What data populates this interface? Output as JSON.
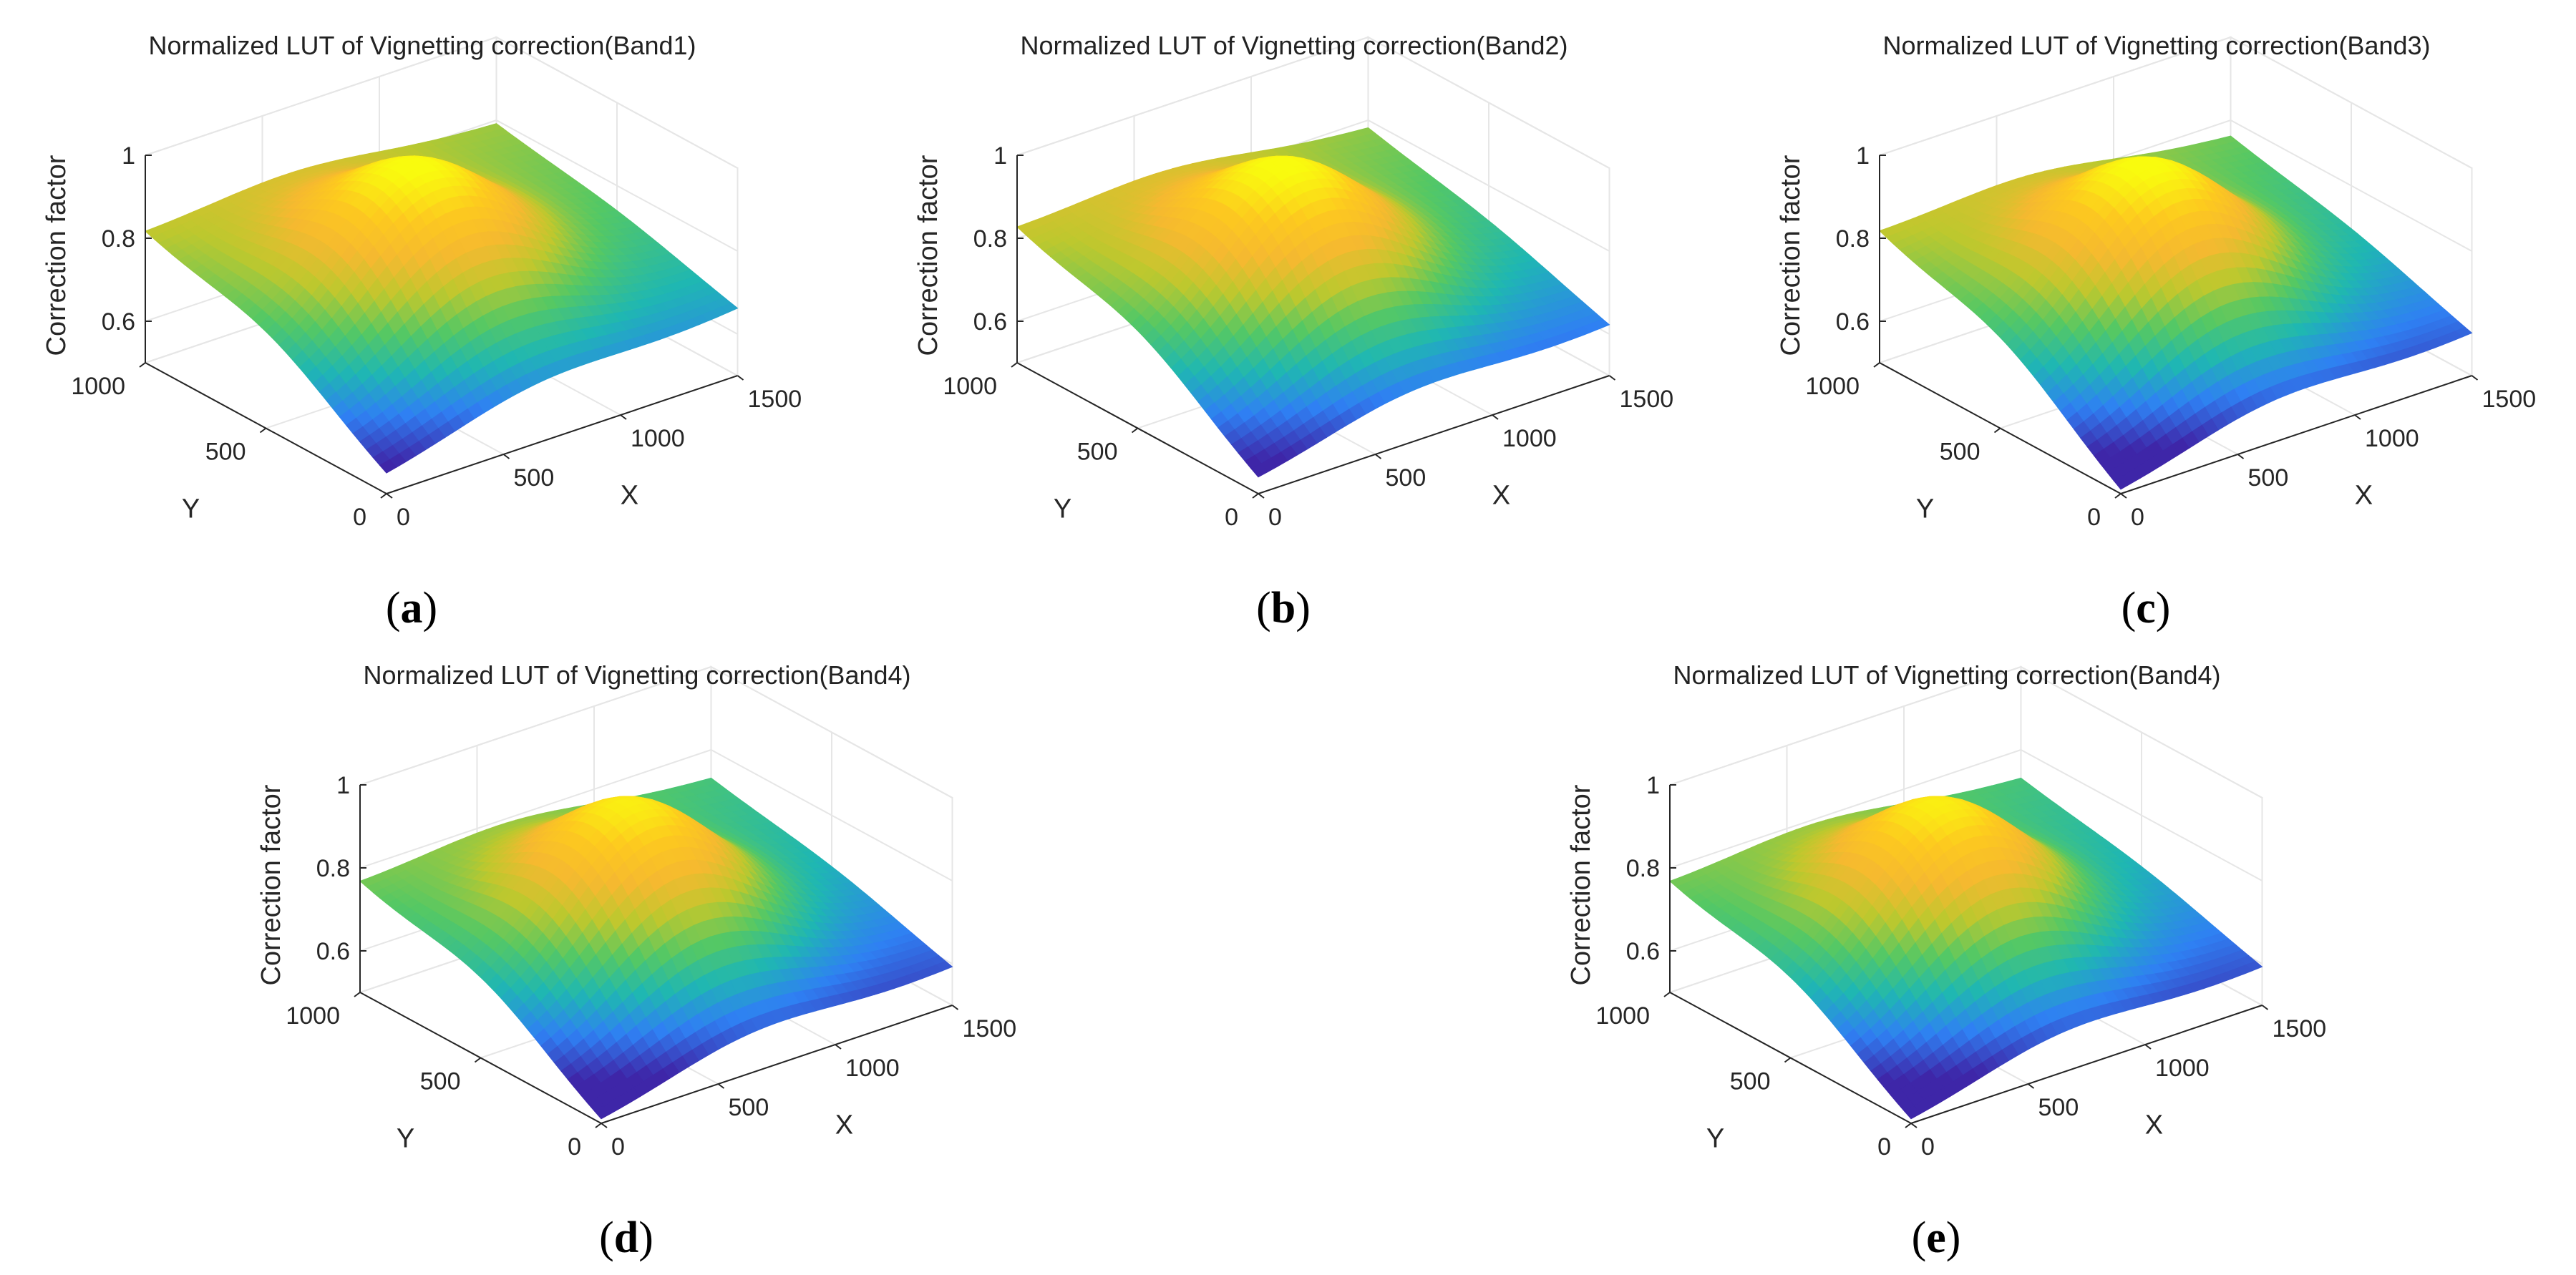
{
  "chart_data": [
    {
      "id": "a",
      "type": "surface3d",
      "panel_label": "a",
      "title": "Normalized LUT of Vignetting correction(Band1)",
      "xlabel": "X",
      "ylabel": "Y",
      "zlabel": "Correction factor",
      "x_ticks": [
        "0",
        "500",
        "1000",
        "1500"
      ],
      "y_ticks": [
        "0",
        "500",
        "1000"
      ],
      "z_ticks": [
        "0.6",
        "0.8",
        "1"
      ],
      "xlim": [
        0,
        1500
      ],
      "ylim": [
        0,
        1000
      ],
      "zlim": [
        0.5,
        1.0
      ],
      "corner_values": {
        "x0_y0": 0.54,
        "xmax_y0": 0.66,
        "x0_ymax": 0.81,
        "xmax_ymax": 0.79
      },
      "peak": {
        "x": 640,
        "y": 480,
        "z": 1.0
      },
      "colormap": [
        "#3e26a8",
        "#2f80f3",
        "#1fb7b2",
        "#55c864",
        "#bdc82e",
        "#f5b930",
        "#fdc91f",
        "#f9fb0e"
      ]
    },
    {
      "id": "b",
      "type": "surface3d",
      "panel_label": "b",
      "title": "Normalized LUT of Vignetting correction(Band2)",
      "xlabel": "X",
      "ylabel": "Y",
      "zlabel": "Correction factor",
      "x_ticks": [
        "0",
        "500",
        "1000",
        "1500"
      ],
      "y_ticks": [
        "0",
        "500",
        "1000"
      ],
      "z_ticks": [
        "0.6",
        "0.8",
        "1"
      ],
      "xlim": [
        0,
        1500
      ],
      "ylim": [
        0,
        1000
      ],
      "zlim": [
        0.5,
        1.0
      ],
      "corner_values": {
        "x0_y0": 0.53,
        "xmax_y0": 0.62,
        "x0_ymax": 0.82,
        "xmax_ymax": 0.78
      },
      "peak": {
        "x": 640,
        "y": 480,
        "z": 1.0
      },
      "colormap": [
        "#3e26a8",
        "#2f80f3",
        "#1fb7b2",
        "#55c864",
        "#bdc82e",
        "#f5b930",
        "#fdc91f",
        "#f9fb0e"
      ]
    },
    {
      "id": "c",
      "type": "surface3d",
      "panel_label": "c",
      "title": "Normalized LUT of Vignetting correction(Band3)",
      "xlabel": "X",
      "ylabel": "Y",
      "zlabel": "Correction factor",
      "x_ticks": [
        "0",
        "500",
        "1000",
        "1500"
      ],
      "y_ticks": [
        "0",
        "500",
        "1000"
      ],
      "z_ticks": [
        "0.6",
        "0.8",
        "1"
      ],
      "xlim": [
        0,
        1500
      ],
      "ylim": [
        0,
        1000
      ],
      "zlim": [
        0.5,
        1.0
      ],
      "corner_values": {
        "x0_y0": 0.5,
        "xmax_y0": 0.6,
        "x0_ymax": 0.81,
        "xmax_ymax": 0.76
      },
      "peak": {
        "x": 640,
        "y": 480,
        "z": 1.0
      },
      "colormap": [
        "#3e26a8",
        "#2f80f3",
        "#1fb7b2",
        "#55c864",
        "#bdc82e",
        "#f5b930",
        "#fdc91f",
        "#f9fb0e"
      ]
    },
    {
      "id": "d",
      "type": "surface3d",
      "panel_label": "d",
      "title": "Normalized LUT of Vignetting correction(Band4)",
      "xlabel": "X",
      "ylabel": "Y",
      "zlabel": "Correction factor",
      "x_ticks": [
        "0",
        "500",
        "1000",
        "1500"
      ],
      "y_ticks": [
        "0",
        "500",
        "1000"
      ],
      "z_ticks": [
        "0.6",
        "0.8",
        "1"
      ],
      "xlim": [
        0,
        1500
      ],
      "ylim": [
        0,
        1000
      ],
      "zlim": [
        0.5,
        1.0
      ],
      "corner_values": {
        "x0_y0": 0.5,
        "xmax_y0": 0.59,
        "x0_ymax": 0.76,
        "xmax_ymax": 0.73
      },
      "peak": {
        "x": 640,
        "y": 480,
        "z": 0.98
      },
      "colormap": [
        "#3e26a8",
        "#2f80f3",
        "#1fb7b2",
        "#55c864",
        "#bdc82e",
        "#f5b930",
        "#fdc91f",
        "#f9fb0e"
      ]
    },
    {
      "id": "e",
      "type": "surface3d",
      "panel_label": "e",
      "title": "Normalized LUT of Vignetting correction(Band4)",
      "xlabel": "X",
      "ylabel": "Y",
      "zlabel": "Correction factor",
      "x_ticks": [
        "0",
        "500",
        "1000",
        "1500"
      ],
      "y_ticks": [
        "0",
        "500",
        "1000"
      ],
      "z_ticks": [
        "0.6",
        "0.8",
        "1"
      ],
      "xlim": [
        0,
        1500
      ],
      "ylim": [
        0,
        1000
      ],
      "zlim": [
        0.5,
        1.0
      ],
      "corner_values": {
        "x0_y0": 0.5,
        "xmax_y0": 0.59,
        "x0_ymax": 0.76,
        "xmax_ymax": 0.73
      },
      "peak": {
        "x": 640,
        "y": 480,
        "z": 0.98
      },
      "colormap": [
        "#3e26a8",
        "#2f80f3",
        "#1fb7b2",
        "#55c864",
        "#bdc82e",
        "#f5b930",
        "#fdc91f",
        "#f9fb0e"
      ]
    }
  ]
}
